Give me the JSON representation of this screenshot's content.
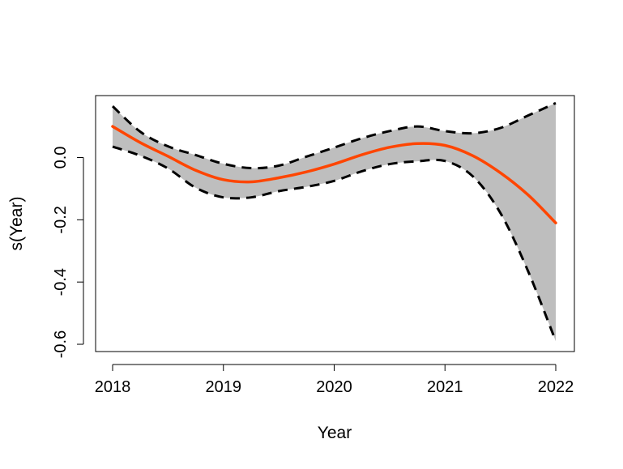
{
  "chart_data": {
    "type": "line",
    "title": "",
    "xlabel": "Year",
    "ylabel": "s(Year)",
    "xlim": [
      2018,
      2022
    ],
    "ylim": [
      -0.6,
      0.17
    ],
    "x_ticks": [
      "2018",
      "2019",
      "2020",
      "2021",
      "2022"
    ],
    "y_ticks": [
      "-0.6",
      "-0.4",
      "-0.2",
      "0.0"
    ],
    "y_tick_values": [
      -0.6,
      -0.4,
      -0.2,
      0.0
    ],
    "grid": false,
    "legend": "none",
    "x": [
      2018.0,
      2018.25,
      2018.5,
      2018.75,
      2019.0,
      2019.25,
      2019.5,
      2019.75,
      2020.0,
      2020.25,
      2020.5,
      2020.75,
      2021.0,
      2021.25,
      2021.5,
      2021.75,
      2022.0
    ],
    "series": [
      {
        "role": "fit",
        "values": [
          0.1,
          0.048,
          0.004,
          -0.041,
          -0.071,
          -0.078,
          -0.065,
          -0.046,
          -0.021,
          0.009,
          0.033,
          0.045,
          0.039,
          0.006,
          -0.049,
          -0.12,
          -0.21
        ]
      },
      {
        "role": "upper",
        "values": [
          0.165,
          0.083,
          0.036,
          0.008,
          -0.02,
          -0.034,
          -0.026,
          0.003,
          0.032,
          0.062,
          0.085,
          0.1,
          0.085,
          0.078,
          0.095,
          0.135,
          0.175
        ]
      },
      {
        "role": "lower",
        "values": [
          0.035,
          0.006,
          -0.035,
          -0.097,
          -0.128,
          -0.128,
          -0.108,
          -0.094,
          -0.075,
          -0.044,
          -0.021,
          -0.012,
          -0.011,
          -0.06,
          -0.178,
          -0.365,
          -0.59
        ]
      }
    ],
    "colors": {
      "fit": "#ff4500",
      "band": "#bebebe",
      "bounds": "#000000"
    }
  }
}
